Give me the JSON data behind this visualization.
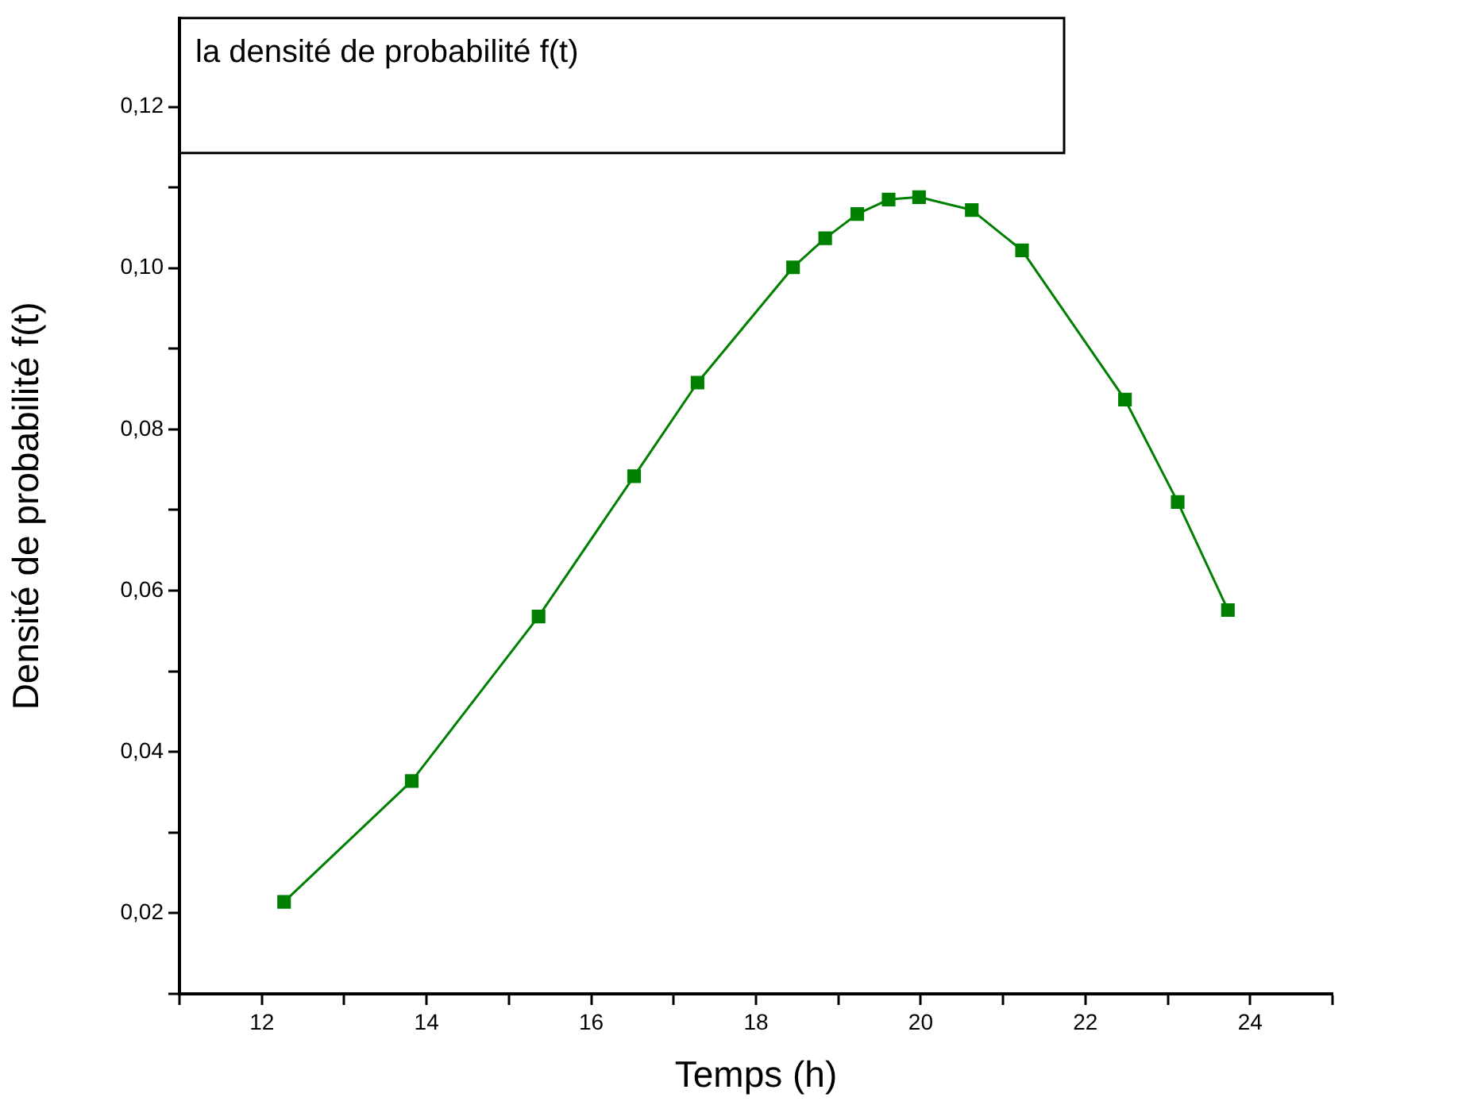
{
  "chart_data": {
    "type": "line",
    "title": "la densité de probabilité f(t)",
    "xlabel": "Temps (h)",
    "ylabel": "Densité de probabilité f(t)",
    "x": [
      12.27,
      13.82,
      15.36,
      16.52,
      17.29,
      18.45,
      18.84,
      19.23,
      19.61,
      19.98,
      20.62,
      21.23,
      22.48,
      23.12,
      23.73
    ],
    "series": [
      {
        "color": "#008000",
        "values": [
          0.0214,
          0.0364,
          0.0568,
          0.0742,
          0.0858,
          0.1001,
          0.1037,
          0.1067,
          0.1085,
          0.1088,
          0.1072,
          0.1022,
          0.0837,
          0.071,
          0.0576
        ]
      }
    ],
    "xlim": [
      11,
      25
    ],
    "ylim": [
      0.01,
      0.131
    ],
    "xticks": [
      {
        "value": 11,
        "label": null
      },
      12,
      {
        "value": 13,
        "label": null
      },
      14,
      {
        "value": 15,
        "label": null
      },
      16,
      {
        "value": 17,
        "label": null
      },
      18,
      {
        "value": 19,
        "label": null
      },
      20,
      {
        "value": 21,
        "label": null
      },
      22,
      {
        "value": 23,
        "label": null
      },
      24,
      {
        "value": 25,
        "label": null
      }
    ],
    "yticks": [
      {
        "value": 0.01,
        "label": null
      },
      {
        "value": 0.02,
        "label": "0,02"
      },
      {
        "value": 0.03,
        "label": null
      },
      {
        "value": 0.04,
        "label": "0,04"
      },
      {
        "value": 0.05,
        "label": null
      },
      {
        "value": 0.06,
        "label": "0,06"
      },
      {
        "value": 0.07,
        "label": null
      },
      {
        "value": 0.08,
        "label": "0,08"
      },
      {
        "value": 0.09,
        "label": null
      },
      {
        "value": 0.1,
        "label": "0,10"
      },
      {
        "value": 0.11,
        "label": null
      },
      {
        "value": 0.12,
        "label": "0,12"
      }
    ],
    "marker": "square",
    "line_style": "solid",
    "grid": false,
    "legend": false
  }
}
